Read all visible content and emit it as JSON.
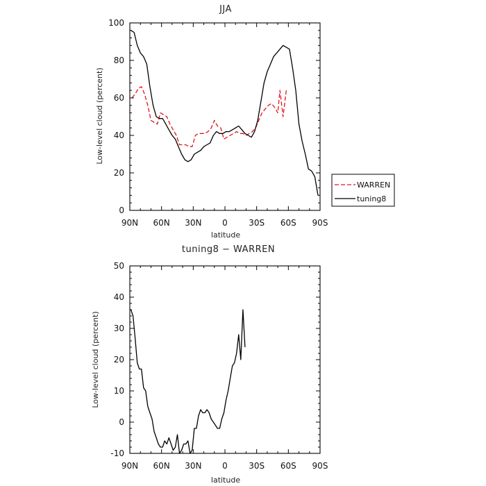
{
  "chart_data": [
    {
      "type": "line",
      "title": "JJA",
      "xlabel": "latitude",
      "ylabel": "Low-level cloud (percent)",
      "xlim": [
        -90,
        90
      ],
      "ylim": [
        0,
        100
      ],
      "x_ticks": [
        {
          "value": -90,
          "label": "90N"
        },
        {
          "value": -60,
          "label": "60N"
        },
        {
          "value": -30,
          "label": "30N"
        },
        {
          "value": 0,
          "label": "0"
        },
        {
          "value": 30,
          "label": "30S"
        },
        {
          "value": 60,
          "label": "60S"
        },
        {
          "value": 90,
          "label": "90S"
        }
      ],
      "y_ticks": [
        0,
        20,
        40,
        60,
        80,
        100
      ],
      "legend": {
        "placement": "outside-right",
        "entries": [
          {
            "label": "WARREN",
            "color": "#e0141e",
            "dash": "dashed"
          },
          {
            "label": "tuning8",
            "color": "#000000",
            "dash": "solid"
          }
        ]
      },
      "series": [
        {
          "name": "WARREN",
          "color": "#e0141e",
          "dash": "dashed",
          "points": [
            [
              -88,
              60
            ],
            [
              -85,
              62
            ],
            [
              -82,
              65
            ],
            [
              -79,
              66
            ],
            [
              -76,
              62
            ],
            [
              -73,
              56
            ],
            [
              -70,
              48
            ],
            [
              -67,
              47
            ],
            [
              -64,
              46
            ],
            [
              -61,
              52
            ],
            [
              -58,
              51
            ],
            [
              -55,
              50
            ],
            [
              -52,
              46
            ],
            [
              -49,
              43
            ],
            [
              -46,
              40
            ],
            [
              -43,
              35
            ],
            [
              -40,
              35
            ],
            [
              -37,
              35
            ],
            [
              -34,
              34
            ],
            [
              -31,
              34
            ],
            [
              -28,
              40
            ],
            [
              -25,
              41
            ],
            [
              -22,
              41
            ],
            [
              -19,
              41
            ],
            [
              -16,
              42
            ],
            [
              -13,
              44
            ],
            [
              -10,
              48
            ],
            [
              -7,
              45
            ],
            [
              -4,
              44
            ],
            [
              -1,
              38
            ],
            [
              2,
              39
            ],
            [
              5,
              40
            ],
            [
              8,
              41
            ],
            [
              11,
              42
            ],
            [
              14,
              41
            ],
            [
              17,
              41
            ],
            [
              20,
              40
            ],
            [
              23,
              41
            ],
            [
              26,
              42
            ],
            [
              29,
              44
            ],
            [
              32,
              48
            ],
            [
              35,
              52
            ],
            [
              38,
              54
            ],
            [
              41,
              56
            ],
            [
              44,
              57
            ],
            [
              47,
              55
            ],
            [
              50,
              52
            ],
            [
              52,
              64
            ],
            [
              55,
              50
            ],
            [
              58,
              64
            ]
          ]
        },
        {
          "name": "tuning8",
          "color": "#000000",
          "dash": "solid",
          "points": [
            [
              -89,
              96
            ],
            [
              -86,
              95
            ],
            [
              -83,
              88
            ],
            [
              -80,
              84
            ],
            [
              -77,
              82
            ],
            [
              -74,
              78
            ],
            [
              -71,
              66
            ],
            [
              -68,
              56
            ],
            [
              -65,
              50
            ],
            [
              -62,
              49
            ],
            [
              -59,
              49
            ],
            [
              -56,
              46
            ],
            [
              -53,
              43
            ],
            [
              -50,
              40
            ],
            [
              -47,
              38
            ],
            [
              -44,
              34
            ],
            [
              -41,
              30
            ],
            [
              -38,
              27
            ],
            [
              -35,
              26
            ],
            [
              -32,
              27
            ],
            [
              -29,
              30
            ],
            [
              -26,
              31
            ],
            [
              -23,
              32
            ],
            [
              -20,
              34
            ],
            [
              -17,
              35
            ],
            [
              -14,
              36
            ],
            [
              -11,
              40
            ],
            [
              -8,
              42
            ],
            [
              -5,
              41
            ],
            [
              -2,
              41
            ],
            [
              1,
              42
            ],
            [
              4,
              42
            ],
            [
              7,
              43
            ],
            [
              10,
              44
            ],
            [
              13,
              45
            ],
            [
              16,
              43
            ],
            [
              19,
              41
            ],
            [
              22,
              40
            ],
            [
              25,
              39
            ],
            [
              28,
              42
            ],
            [
              31,
              48
            ],
            [
              34,
              58
            ],
            [
              37,
              68
            ],
            [
              40,
              74
            ],
            [
              43,
              78
            ],
            [
              46,
              82
            ],
            [
              49,
              84
            ],
            [
              52,
              86
            ],
            [
              55,
              88
            ],
            [
              58,
              87
            ],
            [
              61,
              86
            ],
            [
              64,
              76
            ],
            [
              67,
              64
            ],
            [
              70,
              46
            ],
            [
              73,
              37
            ],
            [
              76,
              30
            ],
            [
              79,
              22
            ],
            [
              82,
              21
            ],
            [
              85,
              18
            ],
            [
              88,
              8
            ]
          ]
        }
      ]
    },
    {
      "type": "line",
      "title": "tuning8 − WARREN",
      "xlabel": "latitude",
      "ylabel": "Low-level cloud (percent)",
      "xlim": [
        -90,
        90
      ],
      "ylim": [
        -10,
        50
      ],
      "x_ticks": [
        {
          "value": -90,
          "label": "90N"
        },
        {
          "value": -60,
          "label": "60N"
        },
        {
          "value": -30,
          "label": "30N"
        },
        {
          "value": 0,
          "label": "0"
        },
        {
          "value": 30,
          "label": "30S"
        },
        {
          "value": 60,
          "label": "60S"
        },
        {
          "value": 90,
          "label": "90S"
        }
      ],
      "y_ticks": [
        -10,
        0,
        10,
        20,
        30,
        40,
        50
      ],
      "series": [
        {
          "color": "#000000",
          "dash": "solid",
          "points": [
            [
              -89,
              36
            ],
            [
              -87,
              34
            ],
            [
              -85,
              27
            ],
            [
              -83,
              19
            ],
            [
              -81,
              17
            ],
            [
              -79,
              17
            ],
            [
              -77,
              11
            ],
            [
              -75,
              10
            ],
            [
              -73,
              5
            ],
            [
              -71,
              3
            ],
            [
              -69,
              1
            ],
            [
              -67,
              -3
            ],
            [
              -65,
              -5
            ],
            [
              -63,
              -7
            ],
            [
              -61,
              -8
            ],
            [
              -59,
              -8
            ],
            [
              -57,
              -6
            ],
            [
              -55,
              -7
            ],
            [
              -53,
              -5
            ],
            [
              -51,
              -7
            ],
            [
              -49,
              -9
            ],
            [
              -47,
              -8
            ],
            [
              -45,
              -4
            ],
            [
              -43,
              -10
            ],
            [
              -41,
              -9
            ],
            [
              -39,
              -7
            ],
            [
              -37,
              -7
            ],
            [
              -35,
              -6
            ],
            [
              -33,
              -10
            ],
            [
              -31,
              -9
            ],
            [
              -29,
              -2
            ],
            [
              -27,
              -2
            ],
            [
              -25,
              2
            ],
            [
              -23,
              4
            ],
            [
              -21,
              3
            ],
            [
              -19,
              3
            ],
            [
              -17,
              4
            ],
            [
              -15,
              3
            ],
            [
              -13,
              1
            ],
            [
              -11,
              0
            ],
            [
              -9,
              -1
            ],
            [
              -7,
              -2
            ],
            [
              -5,
              -2
            ],
            [
              -3,
              1
            ],
            [
              -1,
              3
            ],
            [
              1,
              7
            ],
            [
              3,
              10
            ],
            [
              5,
              14
            ],
            [
              7,
              18
            ],
            [
              9,
              19
            ],
            [
              11,
              22
            ],
            [
              13,
              28
            ],
            [
              15,
              20
            ],
            [
              17,
              36
            ],
            [
              19,
              24
            ]
          ]
        }
      ]
    }
  ]
}
